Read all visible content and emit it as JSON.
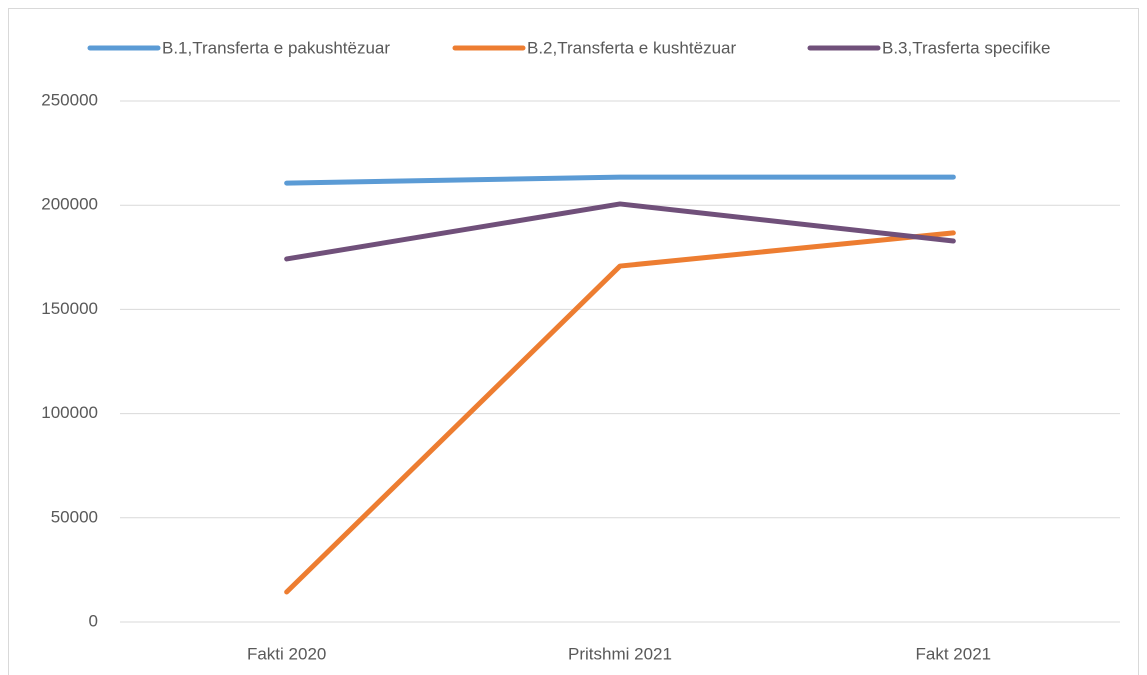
{
  "chart_data": {
    "type": "line",
    "categories": [
      "Fakti 2020",
      "Pritshmi 2021",
      "Fakt 2021"
    ],
    "series": [
      {
        "name": "B.1,Transferta e pakushtëzuar",
        "color": "#5b9bd5",
        "values": [
          210600,
          213500,
          213500
        ]
      },
      {
        "name": "B.2,Transferta e kushtëzuar",
        "color": "#ed7d31",
        "values": [
          14400,
          170800,
          186700
        ]
      },
      {
        "name": "B.3,Trasferta specifike",
        "color": "#70507a",
        "values": [
          174200,
          200600,
          182800
        ]
      }
    ],
    "ylim": [
      0,
      250000
    ],
    "yticks": [
      0,
      50000,
      100000,
      150000,
      200000,
      250000
    ],
    "grid": true,
    "legend": "top"
  }
}
